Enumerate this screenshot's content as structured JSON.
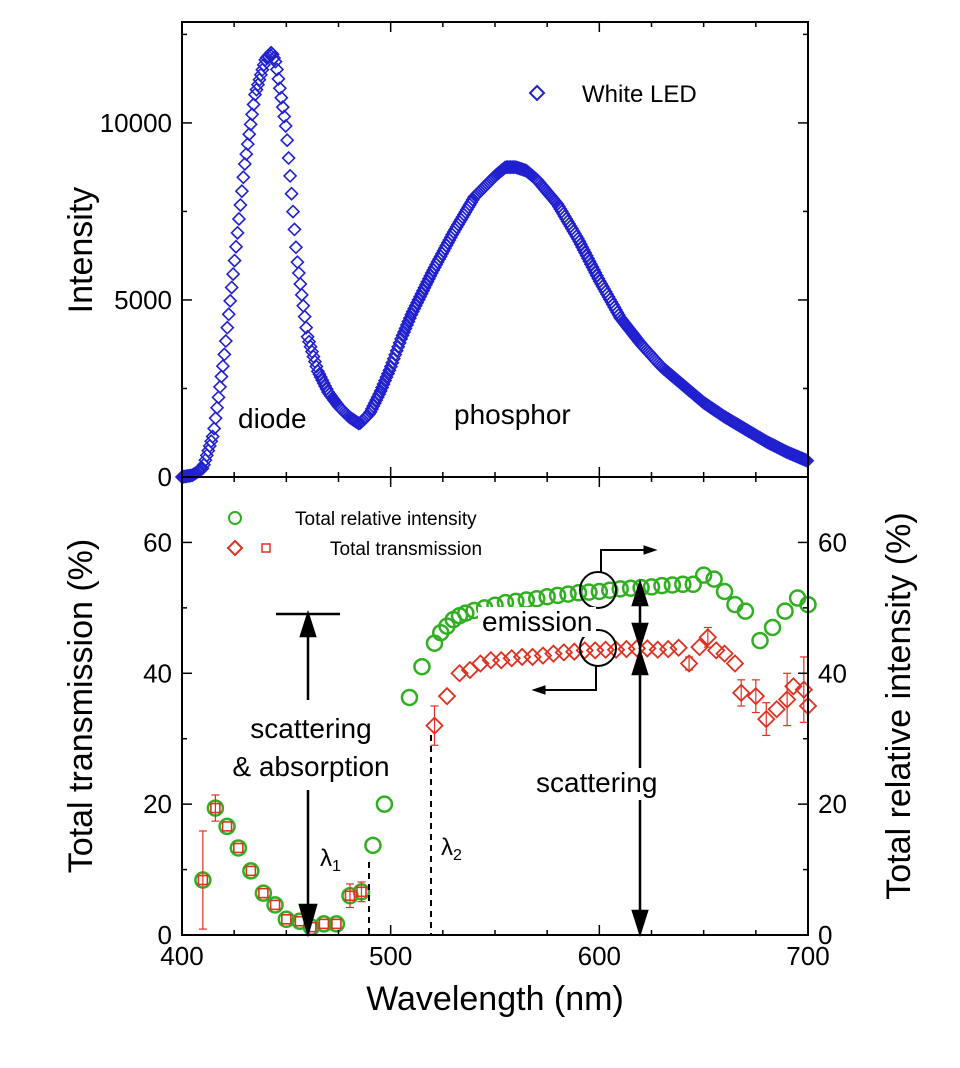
{
  "chart_data": [
    {
      "type": "scatter",
      "panel": "top",
      "ylabel": "Intensity",
      "xlim": [
        400,
        700
      ],
      "ylim": [
        0,
        12850
      ],
      "yticks": [
        "0",
        "5000",
        "10000"
      ],
      "ytick_values": [
        0,
        5000,
        10000
      ],
      "series": [
        {
          "name": "White LED",
          "color": "#2020d0",
          "marker": "diamond",
          "x": [
            400,
            405,
            410,
            415,
            420,
            425,
            430,
            435,
            440,
            443,
            445,
            450,
            455,
            460,
            465,
            470,
            475,
            480,
            485,
            490,
            495,
            500,
            505,
            510,
            515,
            520,
            530,
            540,
            550,
            555,
            560,
            565,
            570,
            580,
            590,
            600,
            610,
            620,
            630,
            640,
            650,
            660,
            670,
            680,
            690,
            700
          ],
          "y": [
            0,
            50,
            250,
            1200,
            3300,
            6000,
            8800,
            10800,
            11800,
            12000,
            11700,
            9800,
            6200,
            4000,
            3000,
            2400,
            2000,
            1700,
            1500,
            1800,
            2400,
            3100,
            3900,
            4600,
            5200,
            5800,
            6900,
            7900,
            8500,
            8750,
            8750,
            8650,
            8400,
            7700,
            6700,
            5550,
            4500,
            3750,
            3100,
            2600,
            2100,
            1700,
            1350,
            1000,
            700,
            450
          ]
        }
      ],
      "annotations": {
        "diode": "diode",
        "phosphor": "phosphor"
      },
      "legend": "top-right"
    },
    {
      "type": "scatter",
      "panel": "bottom",
      "xlabel": "Wavelength (nm)",
      "ylabel": "Total transmission (%)",
      "ylabel_right": "Total relative intensity (%)",
      "xlim": [
        400,
        700
      ],
      "ylim": [
        0,
        70
      ],
      "xticks": [
        "400",
        "500",
        "600",
        "700"
      ],
      "xtick_values": [
        400,
        500,
        600,
        700
      ],
      "yticks": [
        "0",
        "20",
        "40",
        "60"
      ],
      "ytick_values": [
        0,
        20,
        40,
        60
      ],
      "series": [
        {
          "name": "Total relative intensity",
          "color": "#30b020",
          "marker": "circle",
          "x": [
            410,
            416,
            421.6,
            427,
            433,
            439,
            444.6,
            450,
            456.5,
            462,
            468,
            474,
            480.5,
            486,
            491.5,
            497,
            503,
            509,
            515,
            521,
            524,
            527,
            530,
            533,
            536,
            540,
            545,
            550,
            555,
            560,
            565,
            570,
            575,
            580,
            585,
            590,
            595,
            600,
            605,
            610,
            615,
            620,
            625,
            630,
            635,
            640,
            645,
            650,
            655,
            660,
            665,
            670,
            677,
            683,
            689,
            695,
            700
          ],
          "y": [
            8.4,
            19.4,
            16.6,
            13.3,
            9.8,
            6.4,
            4.6,
            2.4,
            2.1,
            1.2,
            1.7,
            1.7,
            6.0,
            6.6,
            13.7,
            20,
            30,
            36.3,
            41,
            44.6,
            46.2,
            47.2,
            48.2,
            48.8,
            49.2,
            49.6,
            50,
            50.4,
            50.8,
            51,
            51.2,
            51.4,
            51.7,
            51.9,
            52.1,
            52.3,
            52.4,
            52.5,
            52.7,
            52.9,
            53,
            53.1,
            53.2,
            53.4,
            53.5,
            53.6,
            53.6,
            55,
            54.4,
            52.5,
            50.5,
            49.5,
            45,
            47,
            49.5,
            51.5,
            50.5
          ]
        },
        {
          "name": "Total transmission",
          "color": "#e03020",
          "marker": "diamond",
          "x": [
            410,
            416,
            421.6,
            427,
            433,
            439,
            444.6,
            450,
            456.5,
            462,
            468,
            474,
            480.5,
            486,
            521,
            527,
            533,
            538,
            543,
            548,
            553,
            558,
            563,
            568,
            573,
            578,
            583,
            588,
            593,
            598,
            603,
            608,
            613,
            618,
            623,
            628,
            633,
            638,
            643,
            648,
            652,
            656,
            660,
            665,
            668,
            675,
            680,
            685,
            690,
            693,
            698,
            700
          ],
          "y": [
            8.4,
            19.4,
            16.6,
            13.3,
            9.8,
            6.4,
            4.6,
            2.4,
            2.1,
            1.2,
            1.7,
            1.7,
            6.0,
            6.6,
            32,
            36.5,
            40,
            40.5,
            41.5,
            42,
            42,
            42.3,
            42.5,
            42.5,
            42.7,
            43,
            43.2,
            43.3,
            43.5,
            43.5,
            43.6,
            43.6,
            43.7,
            43.8,
            43.8,
            43.6,
            43.7,
            43.9,
            41.5,
            44,
            45.5,
            43.5,
            43,
            41.5,
            37,
            36.5,
            33,
            34.5,
            36,
            38,
            37.5,
            35
          ],
          "err": {
            "410": 7.5,
            "416": 2,
            "480.5": 1.8,
            "486": 1.5,
            "521": 3,
            "643": 1,
            "652": 1.5,
            "668": 2,
            "675": 2.5,
            "680": 2.5,
            "690": 4,
            "698": 5
          }
        }
      ],
      "annotations": {
        "scattering_absorption_1": "scattering",
        "scattering_absorption_2": "& absorption",
        "lambda1": "λ",
        "lambda1_sub": "1",
        "lambda2": "λ",
        "lambda2_sub": "2",
        "emission": "emission",
        "scattering": "scattering"
      },
      "legend": "top-left"
    }
  ],
  "labels": {
    "top_ylabel": "Intensity",
    "top_legend": "White LED",
    "y0": "0",
    "y5000": "5000",
    "y10000": "10000",
    "bottom_ylabel": "Total transmission (%)",
    "right_ylabel": "Total relative intensity (%)",
    "xlabel": "Wavelength (nm)",
    "legend_intensity": "Total relative intensity",
    "legend_transmission": "Total transmission"
  }
}
